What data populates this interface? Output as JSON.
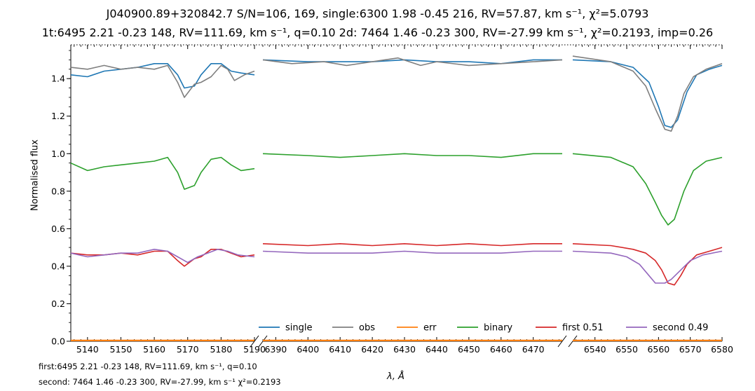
{
  "title_line1": "J040900.89+320842.7 S/N=106, 169, single:6300 1.98 -0.45 216, RV=57.87, km s⁻¹, χ²=5.0793",
  "title_line2": "1t:6495 2.21 -0.23 148, RV=111.69, km s⁻¹, q=0.10 2d: 7464 1.46 -0.23 300, RV=-27.99 km s⁻¹, χ²=0.2193, imp=0.26",
  "footer_line1": "first:6495 2.21 -0.23 148, RV=111.69, km s⁻¹, q=0.10",
  "footer_line2": "second: 7464 1.46 -0.23 300, RV=-27.99, km s⁻¹ χ²=0.2193",
  "chart_data": {
    "type": "line",
    "xlabel": "λ, Å",
    "ylabel": "Normalised flux",
    "ylim": [
      0.0,
      1.58
    ],
    "yticks": [
      "0.0",
      "0.2",
      "0.4",
      "0.6",
      "0.8",
      "1.0",
      "1.2",
      "1.4"
    ],
    "broken_x_axis": true,
    "panels": [
      {
        "xlim": [
          5135,
          5190
        ],
        "xticks": [
          5140,
          5150,
          5160,
          5170,
          5180,
          5190
        ]
      },
      {
        "xlim": [
          6386,
          6479
        ],
        "xticks": [
          6390,
          6400,
          6410,
          6420,
          6430,
          6440,
          6450,
          6460,
          6470
        ]
      },
      {
        "xlim": [
          6533,
          6580
        ],
        "xticks": [
          6540,
          6550,
          6560,
          6570,
          6580
        ]
      }
    ],
    "reference_line": {
      "y": 1.58,
      "style": "dotted"
    },
    "legend": {
      "placement": "bottom-right",
      "columns": 6
    },
    "series": [
      {
        "name": "single",
        "color": "#1f77b4",
        "panel_points": [
          [
            [
              5135,
              1.42
            ],
            [
              5140,
              1.41
            ],
            [
              5145,
              1.44
            ],
            [
              5150,
              1.45
            ],
            [
              5155,
              1.46
            ],
            [
              5160,
              1.48
            ],
            [
              5164,
              1.48
            ],
            [
              5167,
              1.42
            ],
            [
              5169,
              1.35
            ],
            [
              5172,
              1.36
            ],
            [
              5174,
              1.42
            ],
            [
              5177,
              1.48
            ],
            [
              5180,
              1.48
            ],
            [
              5183,
              1.44
            ],
            [
              5186,
              1.43
            ],
            [
              5190,
              1.42
            ]
          ],
          [
            [
              6386,
              1.5
            ],
            [
              6400,
              1.49
            ],
            [
              6410,
              1.49
            ],
            [
              6420,
              1.49
            ],
            [
              6430,
              1.5
            ],
            [
              6440,
              1.49
            ],
            [
              6450,
              1.49
            ],
            [
              6460,
              1.48
            ],
            [
              6470,
              1.5
            ],
            [
              6479,
              1.5
            ]
          ],
          [
            [
              6533,
              1.5
            ],
            [
              6545,
              1.49
            ],
            [
              6552,
              1.46
            ],
            [
              6557,
              1.38
            ],
            [
              6560,
              1.25
            ],
            [
              6562,
              1.15
            ],
            [
              6564,
              1.14
            ],
            [
              6566,
              1.18
            ],
            [
              6569,
              1.33
            ],
            [
              6572,
              1.42
            ],
            [
              6576,
              1.45
            ],
            [
              6580,
              1.47
            ]
          ]
        ]
      },
      {
        "name": "obs",
        "color": "#7f7f7f",
        "panel_points": [
          [
            [
              5135,
              1.46
            ],
            [
              5140,
              1.45
            ],
            [
              5145,
              1.47
            ],
            [
              5150,
              1.45
            ],
            [
              5155,
              1.46
            ],
            [
              5160,
              1.45
            ],
            [
              5164,
              1.47
            ],
            [
              5167,
              1.38
            ],
            [
              5169,
              1.3
            ],
            [
              5172,
              1.37
            ],
            [
              5174,
              1.38
            ],
            [
              5177,
              1.41
            ],
            [
              5180,
              1.47
            ],
            [
              5182,
              1.45
            ],
            [
              5184,
              1.39
            ],
            [
              5187,
              1.42
            ],
            [
              5190,
              1.44
            ]
          ],
          [
            [
              6386,
              1.5
            ],
            [
              6395,
              1.48
            ],
            [
              6405,
              1.49
            ],
            [
              6412,
              1.47
            ],
            [
              6420,
              1.49
            ],
            [
              6428,
              1.51
            ],
            [
              6435,
              1.47
            ],
            [
              6440,
              1.49
            ],
            [
              6450,
              1.47
            ],
            [
              6460,
              1.48
            ],
            [
              6470,
              1.49
            ],
            [
              6479,
              1.5
            ]
          ],
          [
            [
              6533,
              1.52
            ],
            [
              6545,
              1.49
            ],
            [
              6552,
              1.44
            ],
            [
              6556,
              1.36
            ],
            [
              6559,
              1.24
            ],
            [
              6562,
              1.13
            ],
            [
              6564,
              1.12
            ],
            [
              6566,
              1.2
            ],
            [
              6568,
              1.32
            ],
            [
              6571,
              1.41
            ],
            [
              6575,
              1.45
            ],
            [
              6580,
              1.48
            ]
          ]
        ]
      },
      {
        "name": "err",
        "color": "#ff7f0e",
        "panel_points": [
          [
            [
              5135,
              0.004
            ],
            [
              5190,
              0.004
            ]
          ],
          [
            [
              6386,
              0.004
            ],
            [
              6479,
              0.004
            ]
          ],
          [
            [
              6533,
              0.004
            ],
            [
              6580,
              0.004
            ]
          ]
        ]
      },
      {
        "name": "binary",
        "color": "#2ca02c",
        "panel_points": [
          [
            [
              5135,
              0.95
            ],
            [
              5140,
              0.91
            ],
            [
              5145,
              0.93
            ],
            [
              5150,
              0.94
            ],
            [
              5155,
              0.95
            ],
            [
              5160,
              0.96
            ],
            [
              5164,
              0.98
            ],
            [
              5167,
              0.9
            ],
            [
              5169,
              0.81
            ],
            [
              5172,
              0.83
            ],
            [
              5174,
              0.9
            ],
            [
              5177,
              0.97
            ],
            [
              5180,
              0.98
            ],
            [
              5183,
              0.94
            ],
            [
              5186,
              0.91
            ],
            [
              5190,
              0.92
            ]
          ],
          [
            [
              6386,
              1.0
            ],
            [
              6400,
              0.99
            ],
            [
              6410,
              0.98
            ],
            [
              6420,
              0.99
            ],
            [
              6430,
              1.0
            ],
            [
              6440,
              0.99
            ],
            [
              6450,
              0.99
            ],
            [
              6460,
              0.98
            ],
            [
              6470,
              1.0
            ],
            [
              6479,
              1.0
            ]
          ],
          [
            [
              6533,
              1.0
            ],
            [
              6545,
              0.98
            ],
            [
              6552,
              0.93
            ],
            [
              6556,
              0.84
            ],
            [
              6559,
              0.74
            ],
            [
              6561,
              0.67
            ],
            [
              6563,
              0.62
            ],
            [
              6565,
              0.65
            ],
            [
              6568,
              0.8
            ],
            [
              6571,
              0.91
            ],
            [
              6575,
              0.96
            ],
            [
              6580,
              0.98
            ]
          ]
        ]
      },
      {
        "name": "first 0.51",
        "color": "#d62728",
        "panel_points": [
          [
            [
              5135,
              0.47
            ],
            [
              5140,
              0.46
            ],
            [
              5145,
              0.46
            ],
            [
              5150,
              0.47
            ],
            [
              5155,
              0.46
            ],
            [
              5160,
              0.48
            ],
            [
              5164,
              0.48
            ],
            [
              5167,
              0.43
            ],
            [
              5169,
              0.4
            ],
            [
              5172,
              0.44
            ],
            [
              5174,
              0.45
            ],
            [
              5177,
              0.49
            ],
            [
              5180,
              0.49
            ],
            [
              5183,
              0.47
            ],
            [
              5186,
              0.45
            ],
            [
              5190,
              0.46
            ]
          ],
          [
            [
              6386,
              0.52
            ],
            [
              6400,
              0.51
            ],
            [
              6410,
              0.52
            ],
            [
              6420,
              0.51
            ],
            [
              6430,
              0.52
            ],
            [
              6440,
              0.51
            ],
            [
              6450,
              0.52
            ],
            [
              6460,
              0.51
            ],
            [
              6470,
              0.52
            ],
            [
              6479,
              0.52
            ]
          ],
          [
            [
              6533,
              0.52
            ],
            [
              6545,
              0.51
            ],
            [
              6552,
              0.49
            ],
            [
              6556,
              0.47
            ],
            [
              6559,
              0.43
            ],
            [
              6561,
              0.38
            ],
            [
              6563,
              0.31
            ],
            [
              6565,
              0.3
            ],
            [
              6567,
              0.35
            ],
            [
              6569,
              0.41
            ],
            [
              6572,
              0.46
            ],
            [
              6576,
              0.48
            ],
            [
              6580,
              0.5
            ]
          ]
        ]
      },
      {
        "name": "second 0.49",
        "color": "#9467bd",
        "panel_points": [
          [
            [
              5135,
              0.47
            ],
            [
              5140,
              0.45
            ],
            [
              5145,
              0.46
            ],
            [
              5150,
              0.47
            ],
            [
              5155,
              0.47
            ],
            [
              5160,
              0.49
            ],
            [
              5164,
              0.48
            ],
            [
              5167,
              0.45
            ],
            [
              5170,
              0.42
            ],
            [
              5173,
              0.45
            ],
            [
              5176,
              0.47
            ],
            [
              5179,
              0.49
            ],
            [
              5182,
              0.48
            ],
            [
              5185,
              0.46
            ],
            [
              5190,
              0.45
            ]
          ],
          [
            [
              6386,
              0.48
            ],
            [
              6400,
              0.47
            ],
            [
              6410,
              0.47
            ],
            [
              6420,
              0.47
            ],
            [
              6430,
              0.48
            ],
            [
              6440,
              0.47
            ],
            [
              6450,
              0.47
            ],
            [
              6460,
              0.47
            ],
            [
              6470,
              0.48
            ],
            [
              6479,
              0.48
            ]
          ],
          [
            [
              6533,
              0.48
            ],
            [
              6545,
              0.47
            ],
            [
              6550,
              0.45
            ],
            [
              6554,
              0.41
            ],
            [
              6557,
              0.35
            ],
            [
              6559,
              0.31
            ],
            [
              6562,
              0.31
            ],
            [
              6564,
              0.33
            ],
            [
              6567,
              0.38
            ],
            [
              6570,
              0.43
            ],
            [
              6574,
              0.46
            ],
            [
              6580,
              0.48
            ]
          ]
        ]
      }
    ]
  }
}
